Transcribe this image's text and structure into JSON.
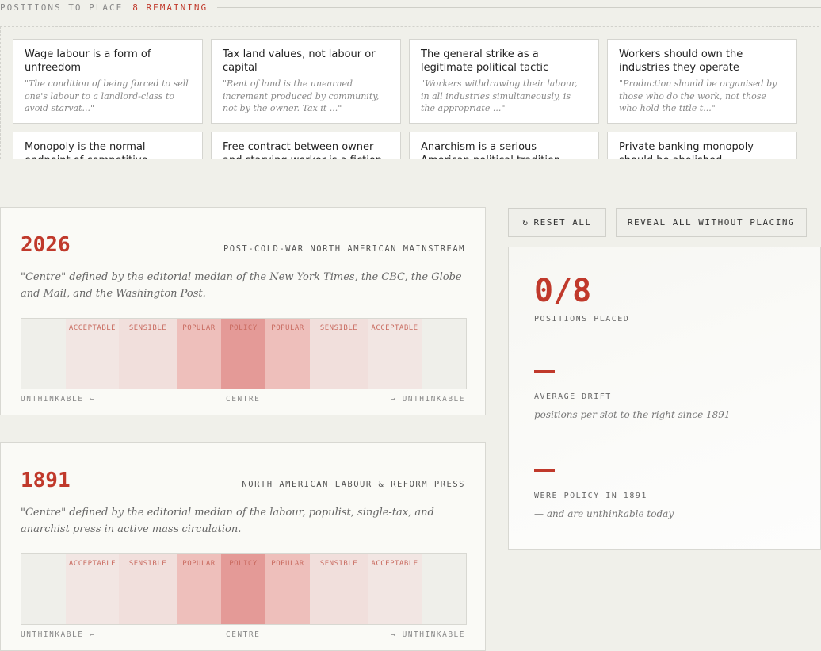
{
  "header": {
    "label": "POSITIONS TO PLACE",
    "remaining": "8 REMAINING"
  },
  "cards": [
    {
      "title": "Wage labour is a form of unfreedom",
      "quote": "\"The condition of being forced to sell one's labour to a landlord-class to avoid starvat...\""
    },
    {
      "title": "Tax land values, not labour or capital",
      "quote": "\"Rent of land is the unearned increment produced by community, not by the owner. Tax it ...\""
    },
    {
      "title": "The general strike as a legitimate political tactic",
      "quote": "\"Workers withdrawing their labour, in all industries simultaneously, is the appropriate ...\""
    },
    {
      "title": "Workers should own the industries they operate",
      "quote": "\"Production should be organised by those who do the work, not those who hold the title t...\""
    },
    {
      "title": "Monopoly is the normal endpoint of competitive markets",
      "quote": ""
    },
    {
      "title": "Free contract between owner and starving worker is a fiction",
      "quote": ""
    },
    {
      "title": "Anarchism is a serious American political tradition",
      "quote": ""
    },
    {
      "title": "Private banking monopoly should be abolished",
      "quote": ""
    }
  ],
  "bands": [
    "ACCEPTABLE",
    "SENSIBLE",
    "POPULAR",
    "POLICY",
    "POPULAR",
    "SENSIBLE",
    "ACCEPTABLE"
  ],
  "axis": {
    "left": "UNTHINKABLE ←",
    "centre": "CENTRE",
    "right": "→ UNTHINKABLE"
  },
  "eras": [
    {
      "year": "2026",
      "name": "POST-COLD-WAR NORTH AMERICAN MAINSTREAM",
      "desc": "\"Centre\" defined by the editorial median of the New York Times, the CBC, the Globe and Mail, and the Washington Post."
    },
    {
      "year": "1891",
      "name": "NORTH AMERICAN LABOUR & REFORM PRESS",
      "desc": "\"Centre\" defined by the editorial median of the labour, populist, single-tax, and anarchist press in active mass circulation."
    }
  ],
  "buttons": {
    "reset_icon": "↻",
    "reset": "RESET ALL",
    "reveal": "REVEAL ALL WITHOUT PLACING"
  },
  "stats": {
    "placed_value": "0/8",
    "placed_label": "POSITIONS PLACED",
    "drift_label": "AVERAGE DRIFT",
    "drift_note": "positions per slot to the right since 1891",
    "policy_label": "WERE POLICY IN 1891",
    "policy_note": "— and are unthinkable today"
  },
  "colors": {
    "accent": "#c0392b",
    "band_policy": "#e49a97",
    "band_popular": "#eebfbb",
    "band_sensible": "#f1dfdc",
    "band_acceptable": "#f2e6e3"
  }
}
